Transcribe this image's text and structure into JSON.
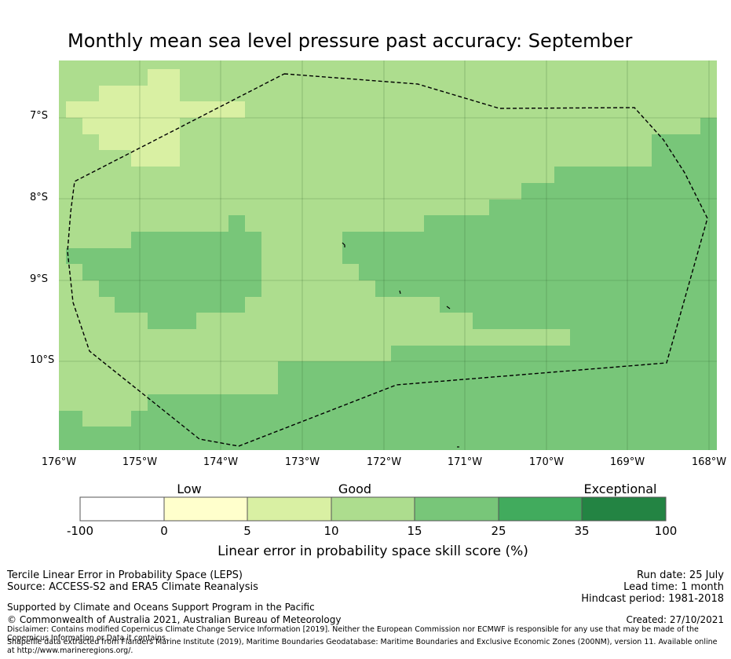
{
  "title": "Monthly mean sea level pressure past accuracy: September",
  "map": {
    "lat_labels": [
      "7°S",
      "8°S",
      "9°S",
      "10°S"
    ],
    "lon_labels": [
      "176°W",
      "175°W",
      "174°W",
      "173°W",
      "172°W",
      "171°W",
      "170°W",
      "169°W",
      "168°W"
    ],
    "boundary": "Maritime boundary / Exclusive Economic Zone (dashed)",
    "colors": {
      "low_0_5": "#ffffcc",
      "5_10": "#d9f0a3",
      "10_15": "#addd8e",
      "15_25": "#78c679",
      "25_35": "#41ab5d",
      "35_100": "#238443"
    }
  },
  "colorbar": {
    "categories": [
      "Low",
      "Good",
      "Exceptional"
    ],
    "ticks": [
      "-100",
      "0",
      "5",
      "10",
      "15",
      "25",
      "35",
      "100"
    ],
    "colors": [
      "#ffffff",
      "#ffffcc",
      "#d9f0a3",
      "#addd8e",
      "#78c679",
      "#41ab5d",
      "#238443"
    ],
    "label": "Linear error in probability space skill score (%)"
  },
  "footer": {
    "method": "Tercile Linear Error in Probability Space (LEPS)",
    "source": "Source: ACCESS-S2 and ERA5 Climate Reanalysis",
    "run_date": "Run date: 25 July",
    "lead_time": "Lead time: 1 month",
    "hindcast": "Hindcast period: 1981-2018",
    "support": "Supported by Climate and Oceans Support Program in the Pacific",
    "copyright": "© Commonwealth of Australia 2021, Australian Bureau of Meteorology",
    "created": "Created: 27/10/2021",
    "disclaimer": "Disclaimer: Contains modified Copernicus Climate Change Service Information [2019]. Neither the European Commission nor ECMWF is responsible for any use that may be made of the Copernicus Information or Data it contains.",
    "shapefile": "Shapefile data extracted from Flanders Marine Institute (2019), Maritime Boundaries Geodatabase: Maritime Boundaries and Exclusive Economic Zones (200NM), version 11. Available online at http://www.marineregions.org/."
  }
}
